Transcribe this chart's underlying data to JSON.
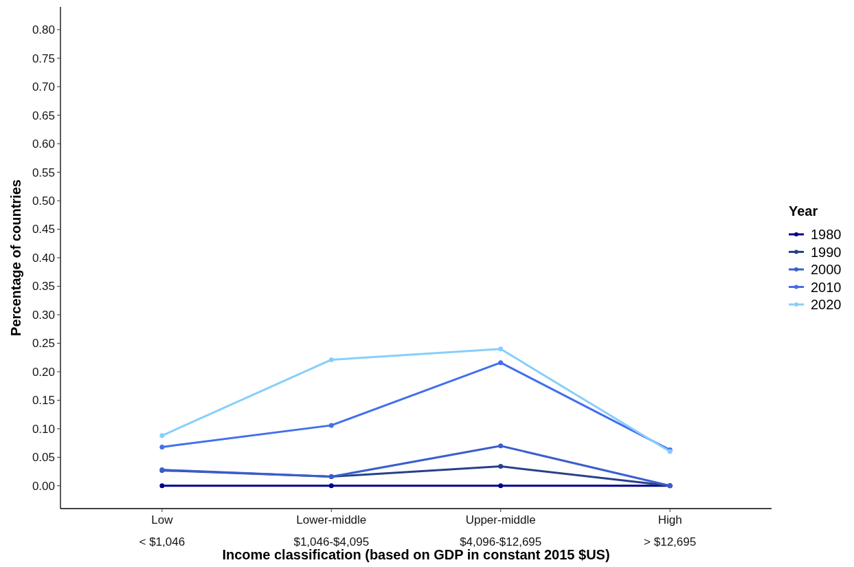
{
  "chart_data": {
    "type": "line",
    "xlabel": "Income classification (based on GDP in constant 2015 $US)",
    "ylabel": "Percentage of countries",
    "legend_title": "Year",
    "legend": "right",
    "marker": "circle",
    "grid": false,
    "categories": [
      "Low\n< $1,046",
      "Lower-middle\n$1,046-$4,095",
      "Upper-middle\n$4,096-$12,695",
      "High\n> $12,695"
    ],
    "ylim": [
      -0.04,
      0.84
    ],
    "yticks": [
      {
        "value": 0,
        "label": "0.00"
      },
      {
        "value": 0.05,
        "label": "0.05"
      },
      {
        "value": 0.1,
        "label": "0.10"
      },
      {
        "value": 0.15,
        "label": "0.15"
      },
      {
        "value": 0.2,
        "label": "0.20"
      },
      {
        "value": 0.25,
        "label": "0.25"
      },
      {
        "value": 0.3,
        "label": "0.30"
      },
      {
        "value": 0.35,
        "label": "0.35"
      },
      {
        "value": 0.4,
        "label": "0.40"
      },
      {
        "value": 0.45,
        "label": "0.45"
      },
      {
        "value": 0.5,
        "label": "0.50"
      },
      {
        "value": 0.55,
        "label": "0.55"
      },
      {
        "value": 0.6,
        "label": "0.60"
      },
      {
        "value": 0.65,
        "label": "0.65"
      },
      {
        "value": 0.7,
        "label": "0.70"
      },
      {
        "value": 0.75,
        "label": "0.75"
      },
      {
        "value": 0.8,
        "label": "0.80"
      }
    ],
    "series": [
      {
        "name": "1980",
        "color": "#00008b",
        "values": [
          0,
          0,
          0,
          0
        ]
      },
      {
        "name": "1990",
        "color": "#27408b",
        "values": [
          0.027,
          0.016,
          0.034,
          0
        ]
      },
      {
        "name": "2000",
        "color": "#3a5fcd",
        "values": [
          0.028,
          0.016,
          0.07,
          0
        ]
      },
      {
        "name": "2010",
        "color": "#436eee",
        "values": [
          0.068,
          0.106,
          0.216,
          0.063
        ]
      },
      {
        "name": "2020",
        "color": "#87cefa",
        "values": [
          0.088,
          0.221,
          0.24,
          0.06
        ]
      }
    ]
  }
}
